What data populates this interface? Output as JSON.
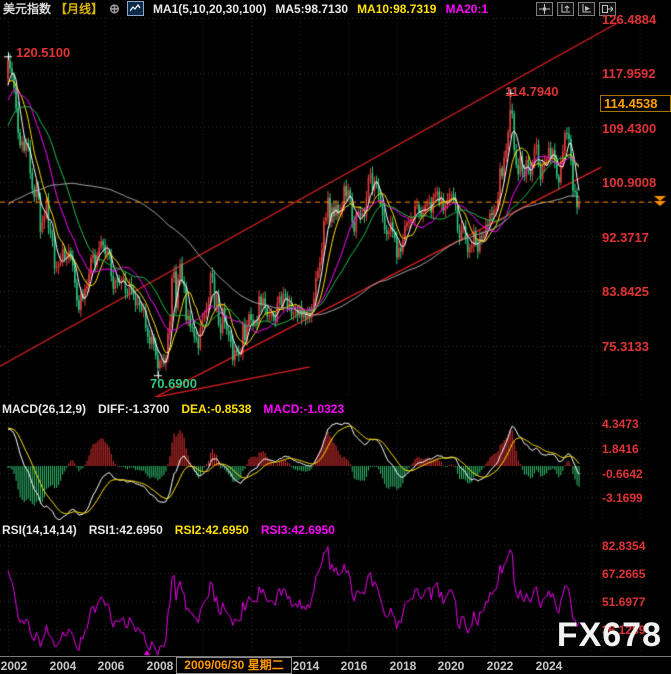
{
  "window": {
    "title": "美元指数【月线】"
  },
  "header": {
    "symbol": "美元指数",
    "period": "【月线】",
    "add_button": "⊕",
    "ma_settings": "MA1(5,10,20,30,100)",
    "ma5": "MA5:98.7130",
    "ma10": "MA10:98.7319",
    "ma20": "MA20:1"
  },
  "toolbar": {
    "icons": [
      "pan-tool",
      "y-axis-scale",
      "go-to-latest",
      "shift-right"
    ]
  },
  "price_axis": {
    "ticks": [
      "126.4884",
      "117.9592",
      "109.4300",
      "100.9008",
      "92.3717",
      "83.8425",
      "75.3133"
    ],
    "crosshair_price": "114.4538"
  },
  "annotations": {
    "left_high": "120.5100",
    "right_high": "114.7940",
    "low": "70.6900"
  },
  "macd_panel": {
    "title": "MACD(26,12,9)",
    "diff": "DIFF:-1.3700",
    "dea": "DEA:-0.8538",
    "macd": "MACD:-1.0323",
    "ticks": [
      "4.3473",
      "1.8416",
      "-0.6642",
      "-3.1699"
    ]
  },
  "rsi_panel": {
    "title": "RSI(14,14,14)",
    "rsi1": "RSI1:42.6950",
    "rsi2": "RSI2:42.6950",
    "rsi3": "RSI3:42.6950",
    "ticks": [
      "82.8354",
      "67.2665",
      "51.6977",
      "36.1289"
    ]
  },
  "time_axis": {
    "years": [
      "2002",
      "2004",
      "2006",
      "2008",
      "2014",
      "2016",
      "2018",
      "2020",
      "2022",
      "2024"
    ],
    "crosshair_date": "2009/06/30 星期二"
  },
  "watermark": "FX678",
  "colors": {
    "up": "#e23b3b",
    "down": "#2ec47e",
    "ma5": "#ffffff",
    "ma10": "#ffe000",
    "ma20": "#ff00ff",
    "ma30": "#1fbf4f",
    "ma100": "#a8a8a8",
    "axis_red": "#e03333",
    "orange": "#ff8f00",
    "grid": "#2d2d2d",
    "trendline": "#e02020",
    "macd_up": "#e03030",
    "macd_down": "#2fbf6f",
    "rsi_line": "#e800e8"
  },
  "chart_data": {
    "type": "candlestick",
    "title": "美元指数【月线】",
    "xlabel": "",
    "ylabel": "",
    "x_start": "2002-01",
    "interval": "month",
    "ylim": [
      67.4,
      127.6
    ],
    "axis_ticks": [
      126.4884,
      117.9592,
      109.43,
      100.9008,
      92.3717,
      83.8425,
      75.3133
    ],
    "closes": [
      119.9,
      118.6,
      117.6,
      115.6,
      112.4,
      108.6,
      106.6,
      107.2,
      105.8,
      107.0,
      106.3,
      102.3,
      99.8,
      98.5,
      100.2,
      98.6,
      93.1,
      94.6,
      95.6,
      98.1,
      93.7,
      92.9,
      91.6,
      87.4,
      87.5,
      88.1,
      88.8,
      90.4,
      88.8,
      88.9,
      90.1,
      89.4,
      87.8,
      85.1,
      82.4,
      80.9,
      83.4,
      82.6,
      84.2,
      84.6,
      86.6,
      89.0,
      89.5,
      87.8,
      89.5,
      90.6,
      91.6,
      91.0,
      89.6,
      90.1,
      89.5,
      86.2,
      84.2,
      85.5,
      85.3,
      85.1,
      85.6,
      85.8,
      83.6,
      83.4,
      85.0,
      84.1,
      83.2,
      81.6,
      82.2,
      81.6,
      80.8,
      80.9,
      78.1,
      76.7,
      75.6,
      76.7,
      75.5,
      73.8,
      71.8,
      72.9,
      73.0,
      72.5,
      73.4,
      77.2,
      79.1,
      85.9,
      86.9,
      81.2,
      85.8,
      88.1,
      85.4,
      84.6,
      79.3,
      80.0,
      78.3,
      78.2,
      76.7,
      76.4,
      74.9,
      77.9,
      79.5,
      80.4,
      81.1,
      81.9,
      86.6,
      86.0,
      81.5,
      83.2,
      78.7,
      77.3,
      81.2,
      79.0,
      77.7,
      76.9,
      75.9,
      73.0,
      74.6,
      74.3,
      73.9,
      74.1,
      78.6,
      76.2,
      78.4,
      80.2,
      79.3,
      78.8,
      79.0,
      78.8,
      83.0,
      81.6,
      82.7,
      81.2,
      79.9,
      80.0,
      80.2,
      79.8,
      79.2,
      81.9,
      83.0,
      81.7,
      83.4,
      83.1,
      81.5,
      82.1,
      80.2,
      80.2,
      80.7,
      80.0,
      81.3,
      79.7,
      80.2,
      79.5,
      80.4,
      79.8,
      81.4,
      82.7,
      85.9,
      87.0,
      88.3,
      90.3,
      94.8,
      95.3,
      98.4,
      94.6,
      96.9,
      95.5,
      97.3,
      95.8,
      96.3,
      96.9,
      100.2,
      98.6,
      99.6,
      98.2,
      94.6,
      93.1,
      95.9,
      96.1,
      95.5,
      96.0,
      95.5,
      98.4,
      101.5,
      102.2,
      99.5,
      101.1,
      100.4,
      99.0,
      97.3,
      95.6,
      93.4,
      92.7,
      93.1,
      94.6,
      93.1,
      92.1,
      89.1,
      90.6,
      90.0,
      91.8,
      94.0,
      94.5,
      94.6,
      95.1,
      95.1,
      97.1,
      97.3,
      96.2,
      95.6,
      96.1,
      97.2,
      97.5,
      97.8,
      96.1,
      98.5,
      98.9,
      99.4,
      97.3,
      98.3,
      96.4,
      97.4,
      98.1,
      99.0,
      99.0,
      98.3,
      97.4,
      93.3,
      92.1,
      93.9,
      94.0,
      91.9,
      89.9,
      90.6,
      90.9,
      93.2,
      91.3,
      90.0,
      92.4,
      92.2,
      92.6,
      94.2,
      94.1,
      96.0,
      95.7,
      96.5,
      96.7,
      98.3,
      103.0,
      101.8,
      104.7,
      105.9,
      108.7,
      112.1,
      111.5,
      105.9,
      103.5,
      102.1,
      104.9,
      102.5,
      101.7,
      104.3,
      102.9,
      101.9,
      103.6,
      106.2,
      106.7,
      103.5,
      101.3,
      103.4,
      104.2,
      104.5,
      106.2,
      104.7,
      105.9,
      104.1,
      101.7,
      100.8,
      104.0,
      105.7,
      108.5,
      108.4,
      107.6,
      104.2,
      99.5,
      99.3,
      96.9,
      97.8
    ],
    "pre_history_closes": [
      93,
      91,
      90,
      90,
      91,
      94,
      96,
      95,
      93,
      94,
      96,
      97,
      96,
      95,
      94,
      92,
      91,
      90,
      89,
      89,
      88,
      87,
      88,
      88,
      87,
      85,
      82,
      81,
      82,
      83,
      84,
      86,
      86,
      86,
      85,
      85,
      86,
      86,
      86,
      87,
      88,
      88,
      88,
      87,
      88,
      88,
      89,
      89,
      90,
      92,
      94,
      95,
      94,
      95,
      97,
      98,
      97,
      96,
      96,
      97,
      98,
      99,
      99,
      99,
      98,
      100,
      100,
      101,
      96,
      94,
      95,
      94,
      96,
      97,
      99,
      100,
      100,
      101,
      99,
      99,
      98,
      97,
      99,
      101,
      102,
      104,
      105,
      106,
      107,
      106,
      106,
      108,
      111,
      115,
      116,
      110,
      111,
      112,
      114,
      116,
      117,
      118,
      119,
      114,
      113,
      114,
      116,
      117
    ],
    "extremes": {
      "0": {
        "high": 120.51
      },
      "74": {
        "low": 70.69
      },
      "248": {
        "high": 114.79
      }
    },
    "last_price": 97.8,
    "indicators": {
      "ma_periods": [
        5,
        10,
        20,
        30,
        100
      ],
      "macd_params": [
        26,
        12,
        9
      ],
      "rsi_params": [
        14,
        14,
        14
      ]
    },
    "sub_axis": {
      "macd_ticks": [
        4.3473,
        1.8416,
        -0.6642,
        -3.1699
      ],
      "rsi_ticks": [
        82.8354,
        67.2665,
        51.6977,
        36.1289
      ]
    },
    "trendlines": [
      {
        "m1": -4,
        "p1": 72.1,
        "m2": 302,
        "p2": 125.9
      },
      {
        "m1": 65,
        "p1": 66.0,
        "m2": 293,
        "p2": 103.2
      },
      {
        "m1": 61,
        "p1": 66.5,
        "m2": 149,
        "p2": 72.0
      }
    ],
    "key_points": [
      {
        "label": "120.5100",
        "month": 0,
        "price": 120.51
      },
      {
        "label": "70.6900",
        "month": 74,
        "price": 70.69
      },
      {
        "label": "114.7940",
        "month": 248,
        "price": 114.79
      }
    ],
    "legend_position": "top",
    "grid": true
  }
}
